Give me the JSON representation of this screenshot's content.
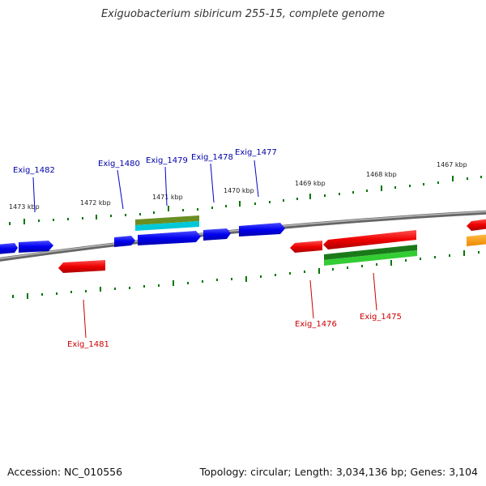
{
  "title": "Exiguobacterium sibiricum 255-15, complete genome",
  "accession": "Accession: NC_010556",
  "summary": "Topology: circular; Length: 3,034,136 bp; Genes: 3,104",
  "tick_labels": [
    "1473 kbp",
    "1472 kbp",
    "1471 kbp",
    "1470 kbp",
    "1469 kbp",
    "1468 kbp",
    "1467 kbp"
  ],
  "genes_forward": [
    "Exig_1482",
    "Exig_1480",
    "Exig_1479",
    "Exig_1478",
    "Exig_1477"
  ],
  "genes_reverse": [
    "Exig_1481",
    "Exig_1476",
    "Exig_1475"
  ],
  "colors": {
    "forward_gene": "#0000ee",
    "reverse_gene": "#ee0000",
    "forward_label": "#0000aa",
    "reverse_label": "#cc0000",
    "rna_olive": "#6b8e23",
    "rna_cyan": "#00c8d8",
    "rna_green": "#22aa22",
    "orange_gene": "#ff9900",
    "tick": "#007700",
    "backbone": "#888888"
  }
}
